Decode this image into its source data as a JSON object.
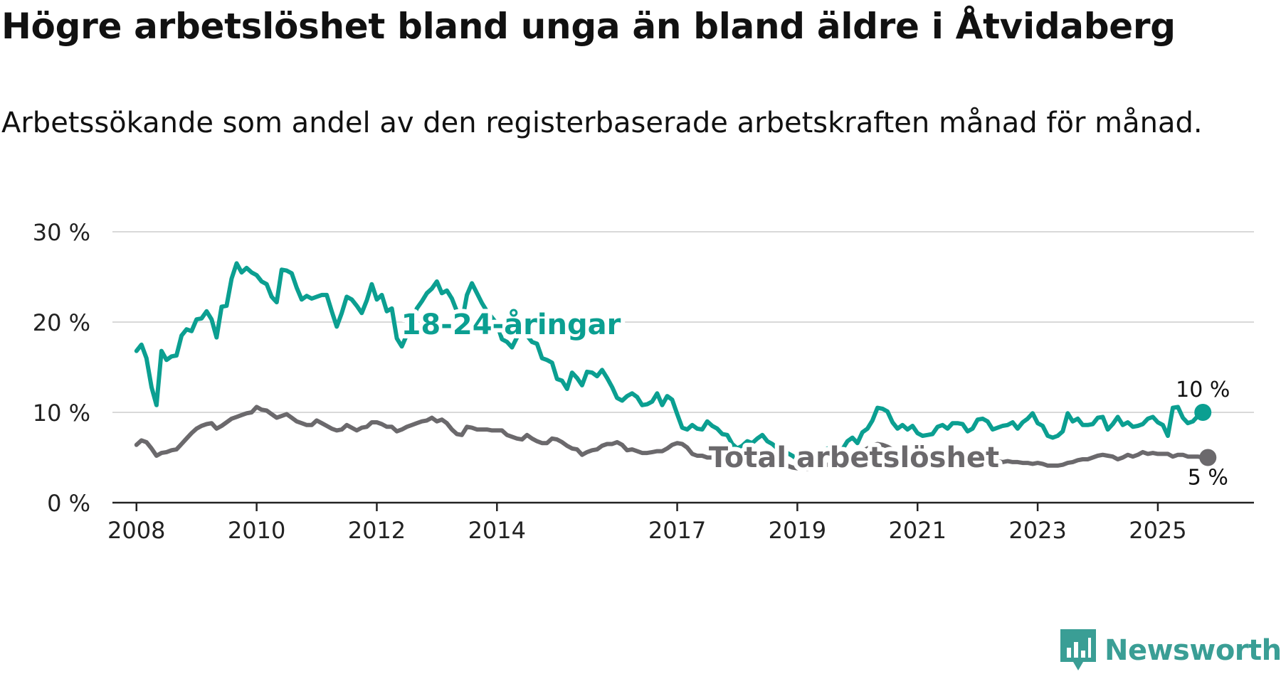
{
  "title": "Högre arbetslöshet bland unga än bland äldre i Åtvidaberg",
  "subtitle": "Arbetssökande som andel av den registerbaserade arbetskraften månad för månad.",
  "logo": {
    "text": "Newsworthy",
    "color": "#3a9e95"
  },
  "chart_data": {
    "type": "line",
    "x_start": 2008.0,
    "x_step_months": 1,
    "xlim": [
      2007.6,
      2026.6
    ],
    "ylim": [
      0,
      30
    ],
    "ytick_values": [
      0,
      10,
      20,
      30
    ],
    "ytick_labels": [
      "0 %",
      "10 %",
      "20 %",
      "30 %"
    ],
    "xtick_values": [
      2008,
      2010,
      2012,
      2014,
      2017,
      2019,
      2021,
      2023,
      2025
    ],
    "xtick_labels": [
      "2008",
      "2010",
      "2012",
      "2014",
      "2017",
      "2019",
      "2021",
      "2023",
      "2025"
    ],
    "grid": true,
    "series": [
      {
        "name": "18-24-åringar",
        "label": "18-24-åringar",
        "color": "#0b9f91",
        "end_label": "10 %",
        "values": [
          16.8,
          17.5,
          16.0,
          12.8,
          10.8,
          16.8,
          15.8,
          16.2,
          16.3,
          18.5,
          19.2,
          19.0,
          20.3,
          20.4,
          21.2,
          20.3,
          18.3,
          21.7,
          21.8,
          24.8,
          26.5,
          25.5,
          26.0,
          25.5,
          25.2,
          24.5,
          24.2,
          22.8,
          22.2,
          25.8,
          25.7,
          25.4,
          23.8,
          22.5,
          22.9,
          22.6,
          22.8,
          23.0,
          23.0,
          21.2,
          19.5,
          21.0,
          22.8,
          22.5,
          21.8,
          21.0,
          22.4,
          24.2,
          22.5,
          23.0,
          21.2,
          21.5,
          18.2,
          17.3,
          18.6,
          20.0,
          21.5,
          22.3,
          23.2,
          23.7,
          24.5,
          23.2,
          23.5,
          22.6,
          21.2,
          20.0,
          23.0,
          24.3,
          23.2,
          22.1,
          21.2,
          20.5,
          19.8,
          18.1,
          17.8,
          17.2,
          18.3,
          19.5,
          18.5,
          17.8,
          17.6,
          16.0,
          15.8,
          15.5,
          13.7,
          13.5,
          12.6,
          14.4,
          13.8,
          13.0,
          14.5,
          14.4,
          14.0,
          14.7,
          13.8,
          12.8,
          11.6,
          11.3,
          11.8,
          12.1,
          11.7,
          10.8,
          10.9,
          11.2,
          12.1,
          10.8,
          11.8,
          11.4,
          9.8,
          8.3,
          8.1,
          8.6,
          8.2,
          8.1,
          9.0,
          8.5,
          8.2,
          7.6,
          7.5,
          6.5,
          6.0,
          6.3,
          6.8,
          6.6,
          7.1,
          7.5,
          6.8,
          6.5,
          6.0,
          5.7,
          5.5,
          5.2,
          4.8,
          4.4,
          4.4,
          4.6,
          5.1,
          5.5,
          6.0,
          5.7,
          5.4,
          5.9,
          6.8,
          7.2,
          6.6,
          7.8,
          8.2,
          9.1,
          10.5,
          10.4,
          10.1,
          8.9,
          8.2,
          8.6,
          8.1,
          8.5,
          7.7,
          7.4,
          7.5,
          7.6,
          8.4,
          8.6,
          8.2,
          8.8,
          8.8,
          8.7,
          7.9,
          8.2,
          9.2,
          9.3,
          9.0,
          8.1,
          8.3,
          8.5,
          8.6,
          8.9,
          8.2,
          8.9,
          9.3,
          9.9,
          8.8,
          8.5,
          7.4,
          7.2,
          7.4,
          7.9,
          9.9,
          9.0,
          9.3,
          8.6,
          8.6,
          8.7,
          9.4,
          9.5,
          8.1,
          8.7,
          9.5,
          8.6,
          8.9,
          8.4,
          8.5,
          8.7,
          9.3,
          9.5,
          8.9,
          8.6,
          7.4,
          10.5,
          10.6,
          9.4,
          8.8,
          9.0,
          9.6,
          10.0
        ]
      },
      {
        "name": "Total arbetslöshet",
        "label": "Total arbetslöshet",
        "color": "#6b696c",
        "end_label": "5 %",
        "values": [
          6.4,
          6.9,
          6.7,
          6.0,
          5.2,
          5.5,
          5.6,
          5.8,
          5.9,
          6.5,
          7.1,
          7.7,
          8.2,
          8.5,
          8.7,
          8.8,
          8.2,
          8.5,
          8.9,
          9.3,
          9.5,
          9.7,
          9.9,
          10.0,
          10.6,
          10.3,
          10.2,
          9.8,
          9.4,
          9.6,
          9.8,
          9.4,
          9.0,
          8.8,
          8.6,
          8.6,
          9.1,
          8.8,
          8.5,
          8.2,
          8.0,
          8.1,
          8.6,
          8.3,
          8.0,
          8.3,
          8.4,
          8.9,
          8.9,
          8.7,
          8.4,
          8.4,
          7.9,
          8.1,
          8.4,
          8.6,
          8.8,
          9.0,
          9.1,
          9.4,
          9.0,
          9.2,
          8.8,
          8.1,
          7.6,
          7.5,
          8.4,
          8.3,
          8.1,
          8.1,
          8.1,
          8.0,
          8.0,
          8.0,
          7.5,
          7.3,
          7.1,
          7.0,
          7.5,
          7.1,
          6.8,
          6.6,
          6.6,
          7.1,
          7.0,
          6.7,
          6.3,
          6.0,
          5.9,
          5.3,
          5.6,
          5.8,
          5.9,
          6.3,
          6.5,
          6.5,
          6.7,
          6.4,
          5.8,
          5.9,
          5.7,
          5.5,
          5.5,
          5.6,
          5.7,
          5.7,
          6.0,
          6.4,
          6.6,
          6.5,
          6.1,
          5.4,
          5.2,
          5.2,
          5.0,
          5.0,
          5.0,
          4.9,
          4.8,
          4.7,
          4.7,
          4.4,
          4.3,
          4.2,
          4.3,
          4.3,
          4.5,
          4.4,
          4.2,
          4.1,
          4.1,
          3.9,
          3.8,
          3.8,
          3.7,
          3.8,
          3.9,
          4.0,
          4.2,
          4.3,
          4.6,
          4.7,
          4.9,
          5.2,
          5.7,
          5.7,
          6.0,
          6.3,
          6.5,
          6.4,
          6.2,
          5.9,
          5.6,
          5.5,
          5.4,
          5.4,
          5.3,
          5.2,
          5.2,
          5.1,
          5.0,
          5.0,
          5.0,
          5.0,
          4.9,
          4.8,
          4.8,
          4.7,
          4.7,
          4.7,
          4.7,
          4.6,
          4.6,
          4.5,
          4.6,
          4.5,
          4.5,
          4.4,
          4.4,
          4.3,
          4.4,
          4.3,
          4.1,
          4.1,
          4.1,
          4.2,
          4.4,
          4.5,
          4.7,
          4.8,
          4.8,
          5.0,
          5.2,
          5.3,
          5.2,
          5.1,
          4.8,
          5.0,
          5.3,
          5.1,
          5.3,
          5.6,
          5.4,
          5.5,
          5.4,
          5.4,
          5.4,
          5.1,
          5.3,
          5.3,
          5.1,
          5.1,
          5.1,
          5.0,
          5.0
        ]
      }
    ]
  }
}
